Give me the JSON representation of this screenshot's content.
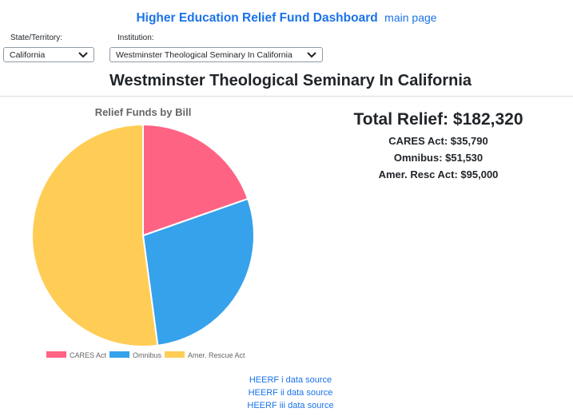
{
  "header": {
    "title": "Higher Education Relief Fund Dashboard",
    "main_link": "main page"
  },
  "filters": {
    "state_label": "State/Territory:",
    "state_value": "California",
    "institution_label": "Institution:",
    "institution_value": "Westminster Theological Seminary In California"
  },
  "institution_name": "Westminster Theological Seminary In California",
  "totals": {
    "total": "Total Relief: $182,320",
    "cares": "CARES Act: $35,790",
    "omnibus": "Omnibus: $51,530",
    "arp": "Amer. Resc Act: $95,000"
  },
  "sources": {
    "heerf_i": "HEERF i data source",
    "heerf_ii": "HEERF ii data source",
    "heerf_iii": "HEERF iii data source"
  },
  "chart_data": {
    "type": "pie",
    "title": "Relief Funds by Bill",
    "categories": [
      "CARES Act",
      "Omnibus",
      "Amer. Rescue Act"
    ],
    "values": [
      35790,
      51530,
      95000
    ],
    "colors": [
      "#ff6384",
      "#36a2eb",
      "#ffcd56"
    ],
    "legend_position": "bottom"
  }
}
